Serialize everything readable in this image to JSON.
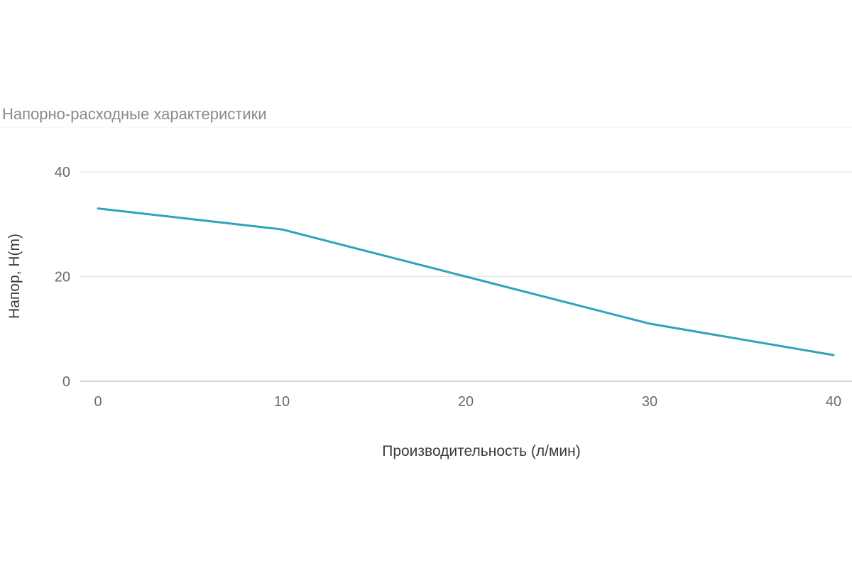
{
  "chart_data": {
    "type": "line",
    "title": "Напорно-расходные характеристики",
    "xlabel": "Производительность (л/мин)",
    "ylabel": "Напор, H(m)",
    "xlim": [
      0,
      40
    ],
    "ylim": [
      0,
      40
    ],
    "x_ticks": [
      "0",
      "10",
      "20",
      "30",
      "40"
    ],
    "y_ticks": [
      "0",
      "20",
      "40"
    ],
    "grid": true,
    "legend": "none",
    "series": [
      {
        "color": "#2fa3bd",
        "x": [
          0,
          10,
          20,
          30,
          40
        ],
        "y": [
          33,
          29,
          20,
          11,
          5
        ]
      }
    ]
  }
}
